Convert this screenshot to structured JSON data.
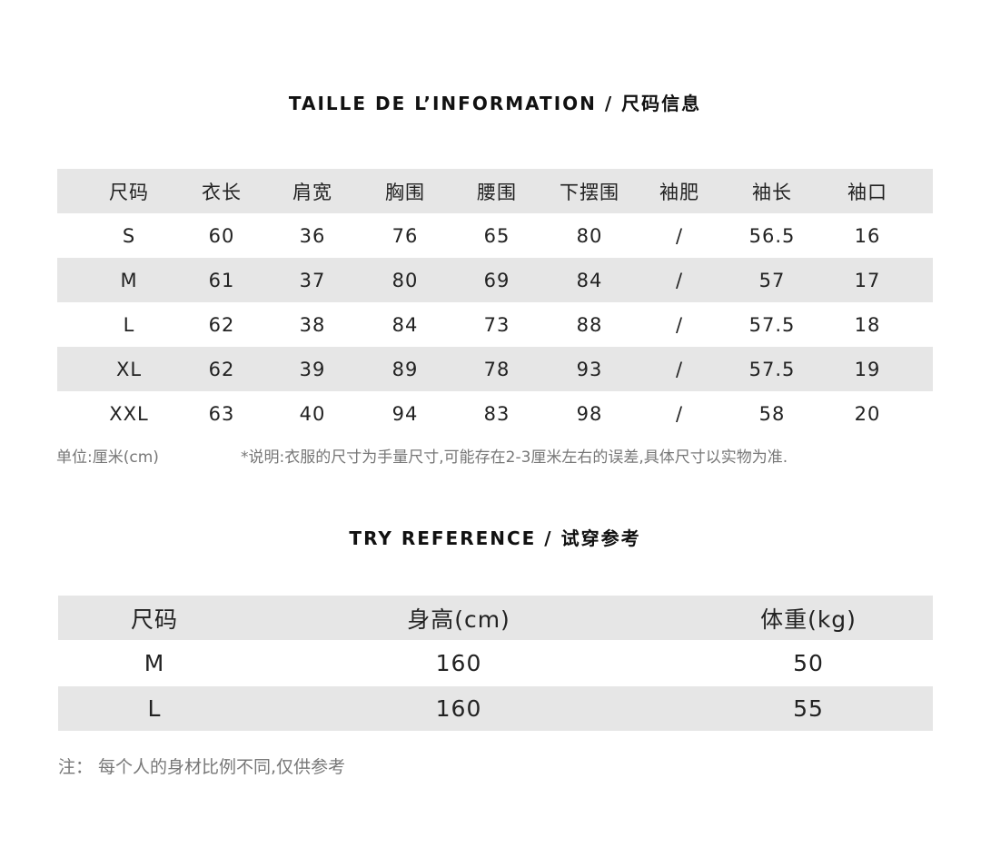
{
  "size_info": {
    "title": "TAILLE DE L’INFORMATION / 尺码信息",
    "headers": [
      "尺码",
      "衣长",
      "肩宽",
      "胸围",
      "腰围",
      "下摆围",
      "袖肥",
      "袖长",
      "袖口"
    ],
    "rows": [
      [
        "S",
        "60",
        "36",
        "76",
        "65",
        "80",
        "/",
        "56.5",
        "16"
      ],
      [
        "M",
        "61",
        "37",
        "80",
        "69",
        "84",
        "/",
        "57",
        "17"
      ],
      [
        "L",
        "62",
        "38",
        "84",
        "73",
        "88",
        "/",
        "57.5",
        "18"
      ],
      [
        "XL",
        "62",
        "39",
        "89",
        "78",
        "93",
        "/",
        "57.5",
        "19"
      ],
      [
        "XXL",
        "63",
        "40",
        "94",
        "83",
        "98",
        "/",
        "58",
        "20"
      ]
    ],
    "unit_note": "单位:厘米(cm)",
    "measure_note": "*说明:衣服的尺寸为手量尺寸,可能存在2-3厘米左右的误差,具体尺寸以实物为准."
  },
  "try_reference": {
    "title": "TRY REFERENCE / 试穿参考",
    "headers": [
      "尺码",
      "身高(cm)",
      "体重(kg)"
    ],
    "rows": [
      [
        "M",
        "160",
        "50"
      ],
      [
        "L",
        "160",
        "55"
      ]
    ],
    "note": "注：  每个人的身材比例不同,仅供参考"
  },
  "colors": {
    "row_stripe": "#e6e6e6",
    "note_text": "#777777"
  }
}
